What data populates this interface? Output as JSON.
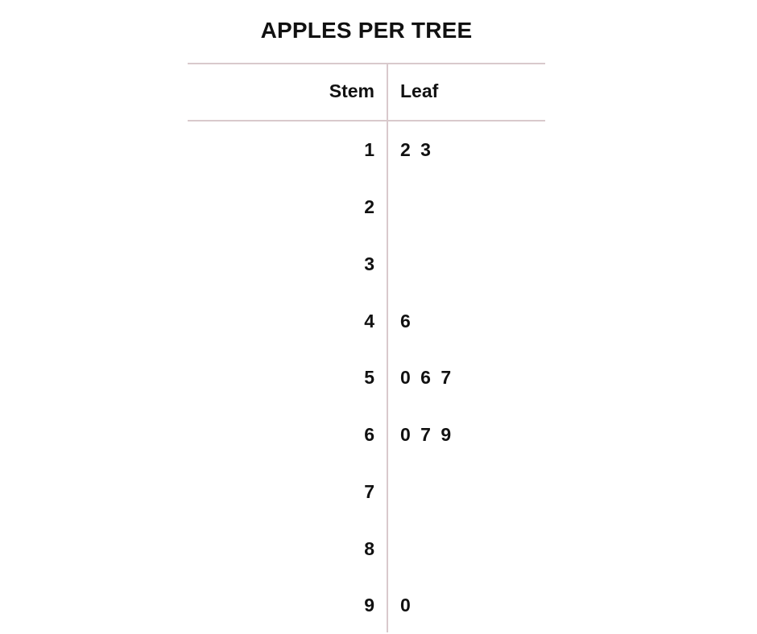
{
  "chart_data": {
    "type": "table",
    "title": "APPLES PER TREE",
    "columns": [
      "Stem",
      "Leaf"
    ],
    "rows": [
      {
        "stem": "1",
        "leaves": "2 3"
      },
      {
        "stem": "2",
        "leaves": ""
      },
      {
        "stem": "3",
        "leaves": ""
      },
      {
        "stem": "4",
        "leaves": "6"
      },
      {
        "stem": "5",
        "leaves": "0 6 7"
      },
      {
        "stem": "6",
        "leaves": "0 7 9"
      },
      {
        "stem": "7",
        "leaves": ""
      },
      {
        "stem": "8",
        "leaves": ""
      },
      {
        "stem": "9",
        "leaves": "0"
      }
    ],
    "colors": {
      "rule": "#d9c9cc",
      "text": "#111111"
    }
  }
}
